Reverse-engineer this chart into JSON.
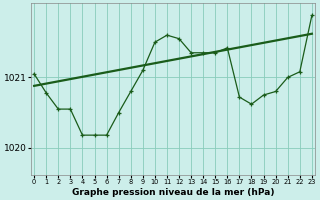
{
  "title": "Graphe pression niveau de la mer (hPa)",
  "bg_color": "#cceeea",
  "grid_color": "#88ccbb",
  "line_color": "#1a5c1a",
  "xlim": [
    -0.3,
    23.3
  ],
  "ylim": [
    1019.62,
    1022.05
  ],
  "yticks": [
    1020,
    1021
  ],
  "xticks": [
    0,
    1,
    2,
    3,
    4,
    5,
    6,
    7,
    8,
    9,
    10,
    11,
    12,
    13,
    14,
    15,
    16,
    17,
    18,
    19,
    20,
    21,
    22,
    23
  ],
  "curve1_x": [
    0,
    1,
    2,
    3,
    4,
    5,
    6,
    7,
    8,
    9,
    10,
    11,
    12,
    13,
    14,
    15,
    16,
    17,
    18,
    19,
    20,
    21,
    22,
    23
  ],
  "curve1_y": [
    1021.05,
    1020.78,
    1020.55,
    1020.55,
    1020.18,
    1020.18,
    1020.18,
    1020.5,
    1020.8,
    1021.1,
    1021.5,
    1021.6,
    1021.55,
    1021.35,
    1021.35,
    1021.35,
    1021.42,
    1020.72,
    1020.62,
    1020.75,
    1020.8,
    1021.0,
    1021.08,
    1021.88
  ],
  "curve2_x": [
    0,
    23
  ],
  "curve2_y": [
    1020.88,
    1021.62
  ]
}
